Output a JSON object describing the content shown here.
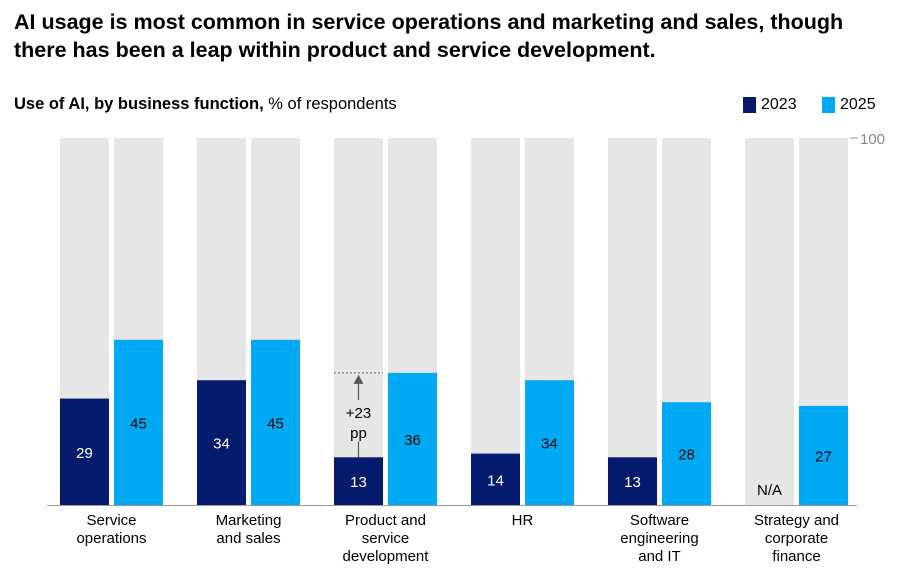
{
  "headline": "AI usage is most common in service operations and marketing and sales, though there has been a leap within product and service development.",
  "subtitle_bold": "Use of AI, by business function,",
  "subtitle_rest": " % of respondents",
  "chart_data": {
    "type": "bar",
    "ylim": [
      0,
      100
    ],
    "ytick_labels": [
      "100"
    ],
    "categories": [
      [
        "Service",
        "operations"
      ],
      [
        "Marketing",
        "and sales"
      ],
      [
        "Product and",
        "service",
        "development"
      ],
      [
        "HR"
      ],
      [
        "Software",
        "engineering",
        "and IT"
      ],
      [
        "Strategy and",
        "corporate",
        "finance"
      ]
    ],
    "series": [
      {
        "name": "2023",
        "color": "#051c6e",
        "values": [
          29,
          34,
          13,
          14,
          13,
          null
        ],
        "missing_label": "N/A"
      },
      {
        "name": "2025",
        "color": "#00a9f4",
        "values": [
          45,
          45,
          36,
          34,
          28,
          27
        ]
      }
    ],
    "background_bar_color": "#e6e6e6",
    "legend_placement": "top-right",
    "annotation": {
      "category_index": 2,
      "lines": [
        "+23",
        "pp"
      ]
    }
  }
}
